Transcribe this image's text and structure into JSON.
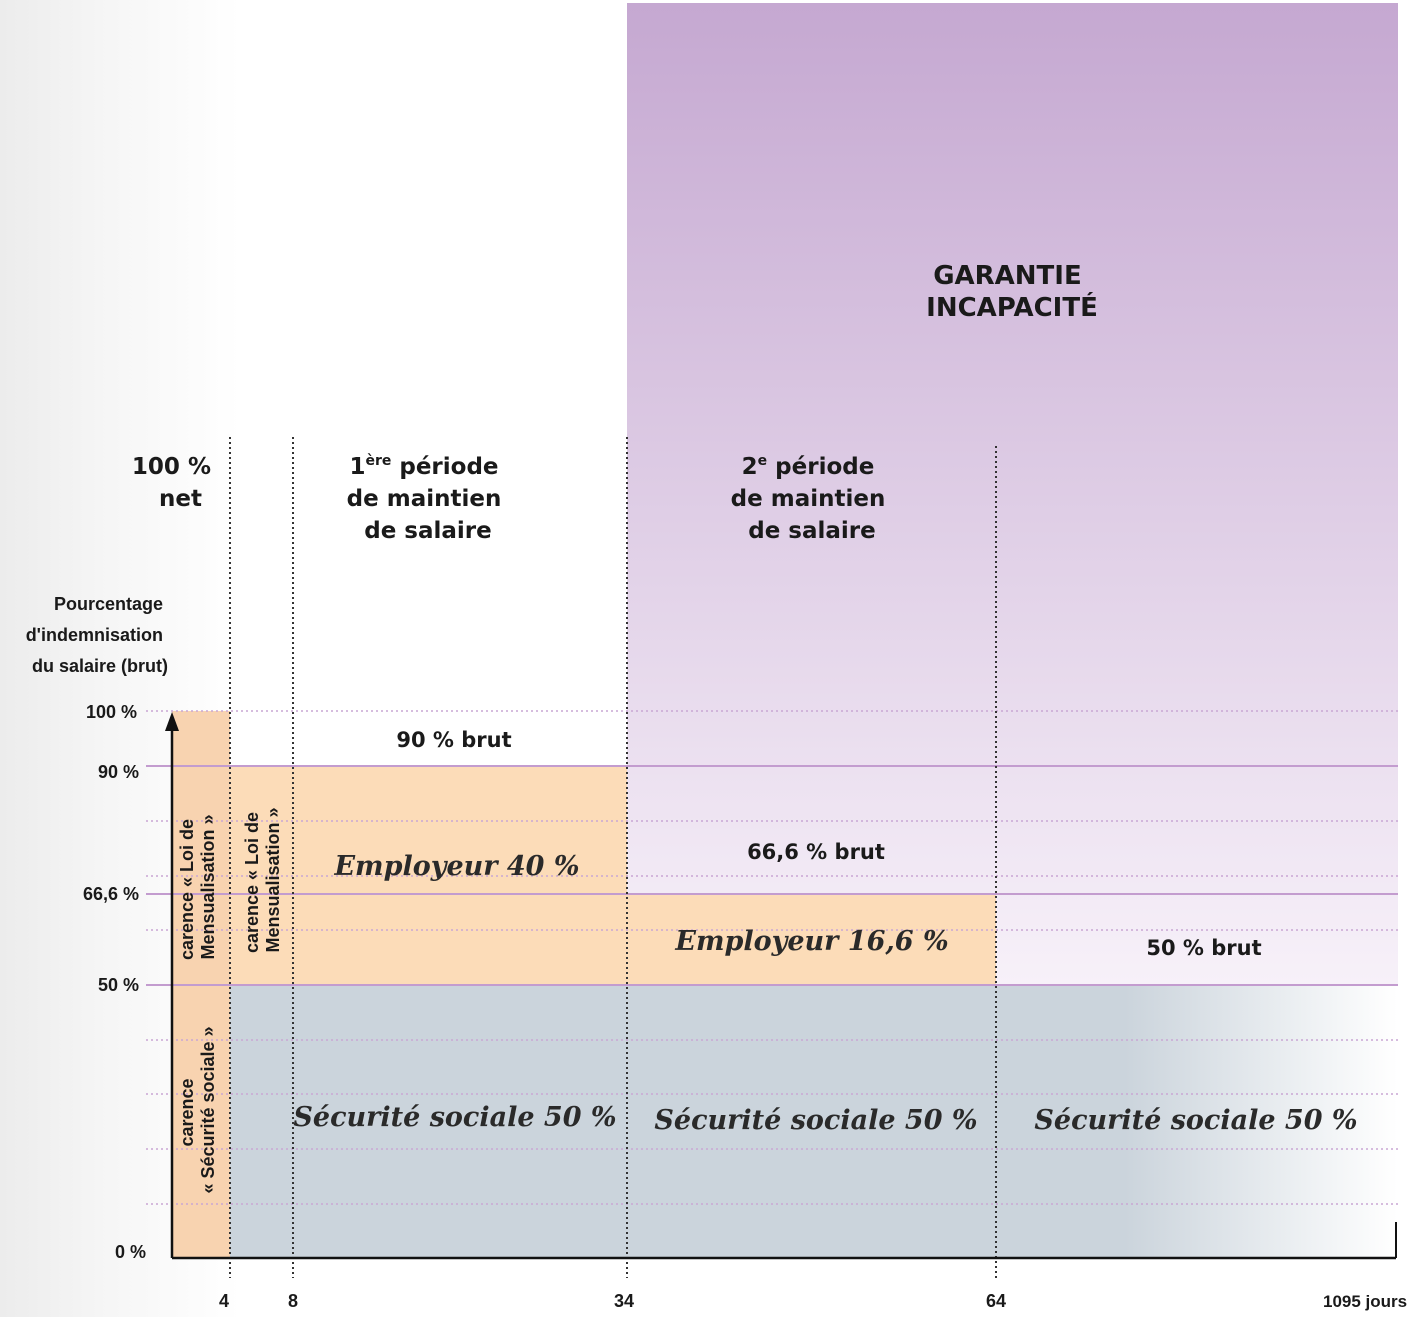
{
  "colors": {
    "purple_top": "#c5a8d1",
    "purple_bottom": "#f7f1f9",
    "employer": "#fcdcb8",
    "carence": "#f8d3b0",
    "social": "#cbd4dc",
    "level_line": "#c39ccf",
    "grid_line": "#c9a6d4",
    "divider": "#333333"
  },
  "chart_data": {
    "type": "area",
    "title": "GARANTIE INCAPACITÉ",
    "ylabel": "Pourcentage d'indemnisation du salaire (brut)",
    "xlabel": "",
    "x_unit": "jours",
    "y_ticks": [
      "100 %",
      "90 %",
      "66,6 %",
      "50 %",
      "0 %"
    ],
    "x_ticks": [
      "4",
      "8",
      "34",
      "64",
      "1095 jours"
    ],
    "header_left": "100 % net",
    "periods": [
      {
        "superscript": "ère",
        "number": "1",
        "line1": " période",
        "line2": "de maintien",
        "line3": "de salaire"
      },
      {
        "superscript": "e",
        "number": "2",
        "line1": " période",
        "line2": "de maintien",
        "line3": "de salaire"
      }
    ],
    "segments": [
      {
        "name": "carence « Loi de Mensualisation »",
        "line1": "carence « Loi de",
        "line2": "Mensualisation »",
        "x_from": 0,
        "x_to": 4,
        "y_from": 50,
        "y_to": 100
      },
      {
        "name": "carence « Sécurité sociale »",
        "line1": "carence",
        "line2": "« Sécurité sociale »",
        "x_from": 0,
        "x_to": 4,
        "y_from": 0,
        "y_to": 50
      },
      {
        "name": "carence « Loi de Mensualisation »",
        "line1": "carence « Loi de",
        "line2": "Mensualisation »",
        "x_from": 4,
        "x_to": 8,
        "y_from": 50,
        "y_to": 90
      },
      {
        "name": "Employeur 40 %",
        "x_from": 8,
        "x_to": 34,
        "y_from": 50,
        "y_to": 90
      },
      {
        "name": "Employeur 16,6 %",
        "x_from": 34,
        "x_to": 64,
        "y_from": 50,
        "y_to": 66.6
      },
      {
        "name": "Sécurité sociale 50 %",
        "x_from": 4,
        "x_to": 34,
        "y_from": 0,
        "y_to": 50
      },
      {
        "name": "Sécurité sociale 50 %",
        "x_from": 34,
        "x_to": 64,
        "y_from": 0,
        "y_to": 50
      },
      {
        "name": "Sécurité sociale 50 %",
        "x_from": 64,
        "x_to": 1095,
        "y_from": 0,
        "y_to": 50
      }
    ],
    "level_labels": [
      "90 % brut",
      "66,6 % brut",
      "50 % brut"
    ]
  }
}
